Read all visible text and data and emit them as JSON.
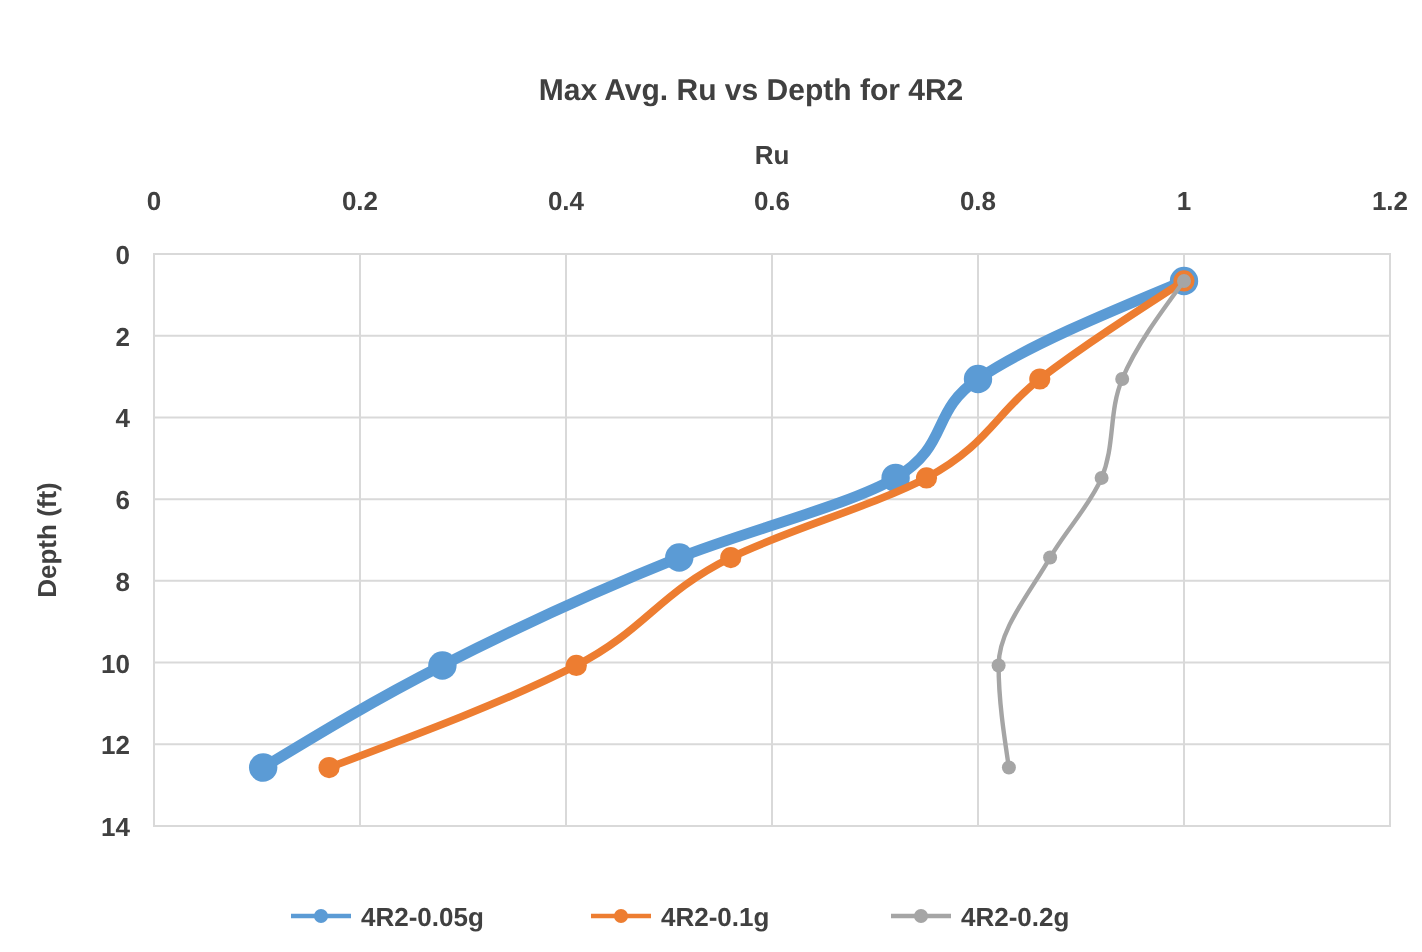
{
  "chart_data": {
    "type": "line",
    "title": "Max Avg. Ru vs Depth for 4R2",
    "xlabel": "Ru",
    "ylabel": "Depth (ft)",
    "xlim": [
      0,
      1.2
    ],
    "xticks": [
      0,
      0.2,
      0.4,
      0.6,
      0.8,
      1,
      1.2
    ],
    "ylim": [
      14,
      0
    ],
    "yticks": [
      0,
      2,
      4,
      6,
      8,
      10,
      12,
      14
    ],
    "grid": true,
    "legend": "bottom",
    "marker": "circle",
    "line_style": "solid",
    "series": [
      {
        "name": "4R2-0.05g",
        "color": "#5b9bd5",
        "x": [
          1.0,
          0.8,
          0.72,
          0.51,
          0.28,
          0.106
        ],
        "values": [
          0.66,
          3.06,
          5.48,
          7.43,
          10.07,
          12.57
        ]
      },
      {
        "name": "4R2-0.1g",
        "color": "#ed7d31",
        "x": [
          1.0,
          0.86,
          0.75,
          0.56,
          0.41,
          0.17
        ],
        "values": [
          0.66,
          3.06,
          5.48,
          7.43,
          10.07,
          12.57
        ]
      },
      {
        "name": "4R2-0.2g",
        "color": "#a5a5a5",
        "x": [
          1.0,
          0.94,
          0.92,
          0.87,
          0.82,
          0.83
        ],
        "values": [
          0.66,
          3.06,
          5.48,
          7.43,
          10.07,
          12.57
        ]
      }
    ]
  }
}
